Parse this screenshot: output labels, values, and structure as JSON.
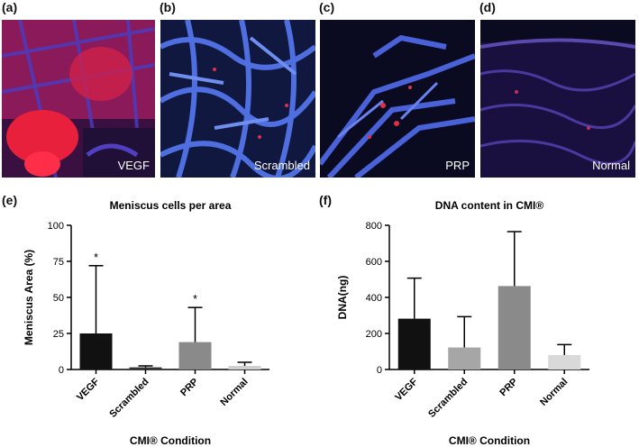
{
  "panels": {
    "a": {
      "letter": "(a)",
      "label": "VEGF"
    },
    "b": {
      "letter": "(b)",
      "label": "Scrambled"
    },
    "c": {
      "letter": "(c)",
      "label": "PRP"
    },
    "d": {
      "letter": "(d)",
      "label": "Normal"
    },
    "e": {
      "letter": "(e)"
    },
    "f": {
      "letter": "(f)"
    }
  },
  "chart_data": [
    {
      "type": "bar",
      "title": "Meniscus cells per area",
      "xlabel": "CMI® Condition",
      "ylabel": "Meniscus Area (%)",
      "categories": [
        "VEGF",
        "Scrambled",
        "PRP",
        "Normal"
      ],
      "values": [
        25,
        1.5,
        19,
        2.5
      ],
      "error_upper": [
        72,
        2.5,
        43,
        5
      ],
      "significance": [
        "*",
        "",
        "*",
        ""
      ],
      "colors": [
        "#111111",
        "#333333",
        "#8a8a8a",
        "#cfcfcf"
      ],
      "ylim": [
        0,
        100
      ],
      "yticks": [
        0,
        25,
        50,
        75,
        100
      ]
    },
    {
      "type": "bar",
      "title": "DNA content in CMI®",
      "xlabel": "CMI® Condition",
      "ylabel": "DNA(ng)",
      "categories": [
        "VEGF",
        "Scrambled",
        "PRP",
        "Normal"
      ],
      "values": [
        282,
        122,
        463,
        80
      ],
      "error_upper": [
        507,
        293,
        765,
        138
      ],
      "colors": [
        "#111111",
        "#a6a6a6",
        "#8a8a8a",
        "#d9d9d9"
      ],
      "ylim": [
        0,
        800
      ],
      "yticks": [
        0,
        200,
        400,
        600,
        800
      ]
    }
  ]
}
